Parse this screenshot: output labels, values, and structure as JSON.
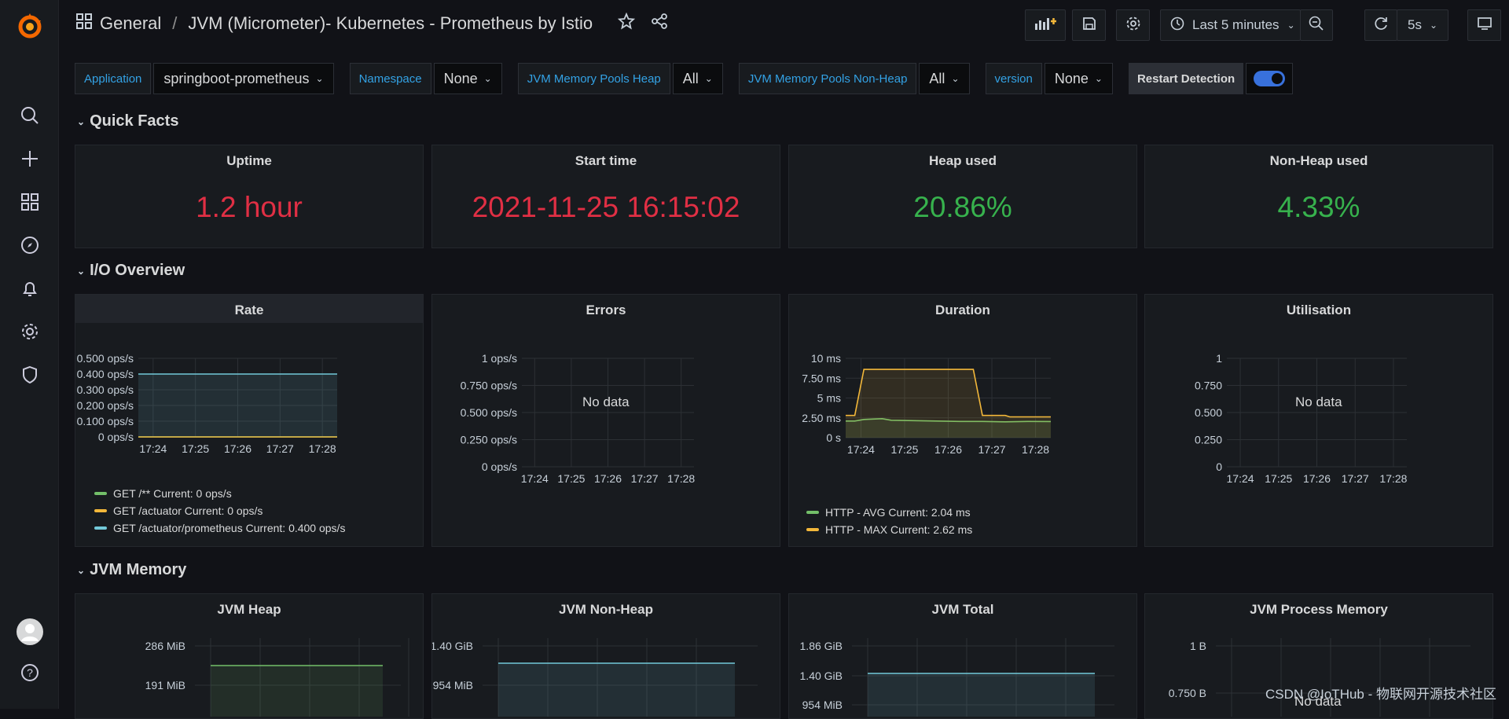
{
  "breadcrumb": {
    "folder": "General",
    "separator": "/",
    "title": "JVM (Micrometer)- Kubernetes - Prometheus by Istio"
  },
  "toolbar": {
    "time_range": "Last 5 minutes",
    "refresh_interval": "5s"
  },
  "variables": [
    {
      "label": "Application",
      "value": "springboot-prometheus"
    },
    {
      "label": "Namespace",
      "value": "None"
    },
    {
      "label": "JVM Memory Pools Heap",
      "value": "All"
    },
    {
      "label": "JVM Memory Pools Non-Heap",
      "value": "All"
    },
    {
      "label": "version",
      "value": "None"
    }
  ],
  "restart": {
    "label": "Restart Detection",
    "enabled": true
  },
  "rows": {
    "quick_facts": "Quick Facts",
    "io_overview": "I/O Overview",
    "jvm_memory": "JVM Memory"
  },
  "stats": [
    {
      "title": "Uptime",
      "value": "1.2 hour",
      "color": "#e02f44"
    },
    {
      "title": "Start time",
      "value": "2021-11-25 16:15:02",
      "color": "#e02f44"
    },
    {
      "title": "Heap used",
      "value": "20.86%",
      "color": "#37b24d"
    },
    {
      "title": "Non-Heap used",
      "value": "4.33%",
      "color": "#37b24d"
    }
  ],
  "x_ticks": [
    "17:24",
    "17:25",
    "17:26",
    "17:27",
    "17:28"
  ],
  "panels": {
    "rate": {
      "title": "Rate"
    },
    "errors": {
      "title": "Errors",
      "no_data": "No data"
    },
    "duration": {
      "title": "Duration"
    },
    "utilisation": {
      "title": "Utilisation",
      "no_data": "No data"
    },
    "jvm_heap": {
      "title": "JVM Heap"
    },
    "jvm_nonheap": {
      "title": "JVM Non-Heap"
    },
    "jvm_total": {
      "title": "JVM Total"
    },
    "jvm_process": {
      "title": "JVM Process Memory",
      "no_data": "No data"
    }
  },
  "legends": {
    "rate": [
      {
        "label": "GET /**  Current: 0 ops/s",
        "color": "#73bf69"
      },
      {
        "label": "GET /actuator  Current: 0 ops/s",
        "color": "#f2b73a"
      },
      {
        "label": "GET /actuator/prometheus  Current: 0.400 ops/s",
        "color": "#73c9d9"
      }
    ],
    "duration": [
      {
        "label": "HTTP - AVG  Current: 2.04 ms",
        "color": "#73bf69"
      },
      {
        "label": "HTTP - MAX  Current: 2.62 ms",
        "color": "#f2b73a"
      }
    ]
  },
  "chart_data": [
    {
      "type": "line",
      "title": "Rate",
      "x": [
        "17:24",
        "17:25",
        "17:26",
        "17:27",
        "17:28"
      ],
      "y_ticks": [
        "0 ops/s",
        "0.100 ops/s",
        "0.200 ops/s",
        "0.300 ops/s",
        "0.400 ops/s",
        "0.500 ops/s"
      ],
      "ylim": [
        0,
        0.5
      ],
      "series": [
        {
          "name": "GET /**",
          "values": [
            0,
            0,
            0,
            0,
            0
          ],
          "color": "#73bf69"
        },
        {
          "name": "GET /actuator",
          "values": [
            0,
            0,
            0,
            0,
            0
          ],
          "color": "#f2b73a"
        },
        {
          "name": "GET /actuator/prometheus",
          "values": [
            0.4,
            0.4,
            0.4,
            0.4,
            0.4
          ],
          "color": "#73c9d9"
        }
      ]
    },
    {
      "type": "line",
      "title": "Errors",
      "x": [
        "17:24",
        "17:25",
        "17:26",
        "17:27",
        "17:28"
      ],
      "y_ticks": [
        "0 ops/s",
        "0.250 ops/s",
        "0.500 ops/s",
        "0.750 ops/s",
        "1 ops/s"
      ],
      "ylim": [
        0,
        1
      ],
      "series": []
    },
    {
      "type": "line",
      "title": "Duration",
      "x": [
        "17:24",
        "17:25",
        "17:26",
        "17:27",
        "17:28"
      ],
      "y_ticks": [
        "0 s",
        "2.50 ms",
        "5 ms",
        "7.50 ms",
        "10 ms"
      ],
      "ylim": [
        0,
        10
      ],
      "series": [
        {
          "name": "HTTP - AVG",
          "color": "#73bf69",
          "points": [
            [
              0,
              2.1
            ],
            [
              0.2,
              2.1
            ],
            [
              0.4,
              2.3
            ],
            [
              0.8,
              2.4
            ],
            [
              1.0,
              2.2
            ],
            [
              1.5,
              2.15
            ],
            [
              2.0,
              2.1
            ],
            [
              2.5,
              2.05
            ],
            [
              3.0,
              2.05
            ],
            [
              3.5,
              2.0
            ],
            [
              4.0,
              2.05
            ],
            [
              4.5,
              2.04
            ]
          ]
        },
        {
          "name": "HTTP - MAX",
          "color": "#f2b73a",
          "points": [
            [
              0,
              2.8
            ],
            [
              0.2,
              2.8
            ],
            [
              0.4,
              8.6
            ],
            [
              1.0,
              8.6
            ],
            [
              2.0,
              8.6
            ],
            [
              2.8,
              8.6
            ],
            [
              3.0,
              2.8
            ],
            [
              3.5,
              2.8
            ],
            [
              3.6,
              2.62
            ],
            [
              4.5,
              2.62
            ]
          ]
        }
      ]
    },
    {
      "type": "line",
      "title": "Utilisation",
      "x": [
        "17:24",
        "17:25",
        "17:26",
        "17:27",
        "17:28"
      ],
      "y_ticks": [
        "0",
        "0.250",
        "0.500",
        "0.750",
        "1"
      ],
      "ylim": [
        0,
        1
      ],
      "series": []
    },
    {
      "type": "area",
      "title": "JVM Heap",
      "y_ticks": [
        "286 MiB",
        "191 MiB"
      ],
      "series": [
        {
          "values": [
            286,
            286,
            286,
            286,
            286
          ],
          "color": "#73bf69"
        }
      ]
    },
    {
      "type": "area",
      "title": "JVM Non-Heap",
      "y_ticks": [
        "1.40 GiB",
        "954 MiB"
      ],
      "series": [
        {
          "values": [
            1.4,
            1.4,
            1.4,
            1.4,
            1.4
          ],
          "color": "#73c9d9"
        }
      ]
    },
    {
      "type": "area",
      "title": "JVM Total",
      "y_ticks": [
        "1.86 GiB",
        "1.40 GiB",
        "954 MiB"
      ],
      "series": [
        {
          "values": [
            1.45,
            1.45,
            1.45,
            1.45,
            1.45
          ],
          "color": "#73c9d9"
        }
      ]
    },
    {
      "type": "line",
      "title": "JVM Process Memory",
      "y_ticks": [
        "1 B",
        "0.750 B"
      ],
      "series": []
    }
  ],
  "watermark": "CSDN @IoTHub - 物联网开源技术社区"
}
